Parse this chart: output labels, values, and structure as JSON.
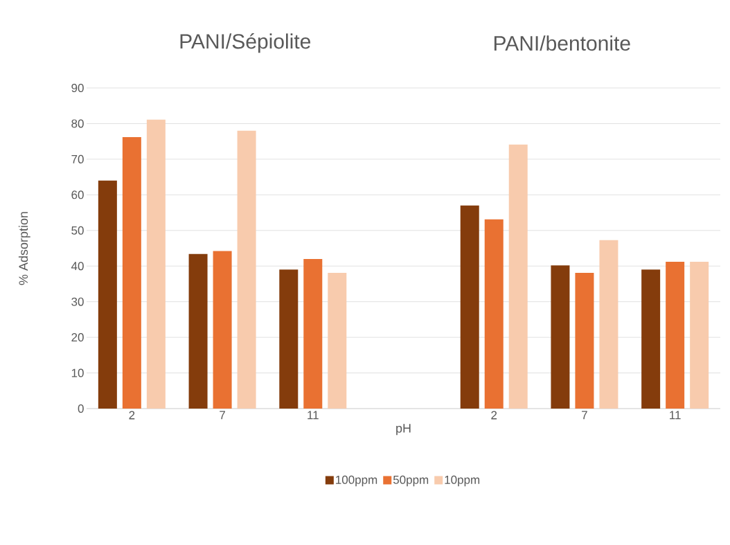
{
  "chart_data": {
    "type": "bar",
    "annotations": [
      "PANI/Sépiolite",
      "PANI/bentonite"
    ],
    "xlabel": "pH",
    "ylabel": "% Adsorption",
    "categories": [
      "2",
      "7",
      "11",
      null,
      "2",
      "7",
      "11"
    ],
    "series": [
      {
        "name": "100ppm",
        "color": "#843c0c",
        "values": [
          64,
          43.4,
          39,
          null,
          57,
          40.2,
          39
        ]
      },
      {
        "name": "50ppm",
        "color": "#e97132",
        "values": [
          76.2,
          44.2,
          42,
          null,
          53.1,
          38.1,
          41.2
        ]
      },
      {
        "name": "10ppm",
        "color": "#f8cbad",
        "values": [
          81.1,
          78,
          38.1,
          null,
          74.1,
          47.3,
          41.2
        ]
      }
    ],
    "ylim": [
      0,
      90
    ],
    "yticks": [
      0,
      10,
      20,
      30,
      40,
      50,
      60,
      70,
      80,
      90
    ],
    "grid": "y",
    "legend": "bottom"
  }
}
